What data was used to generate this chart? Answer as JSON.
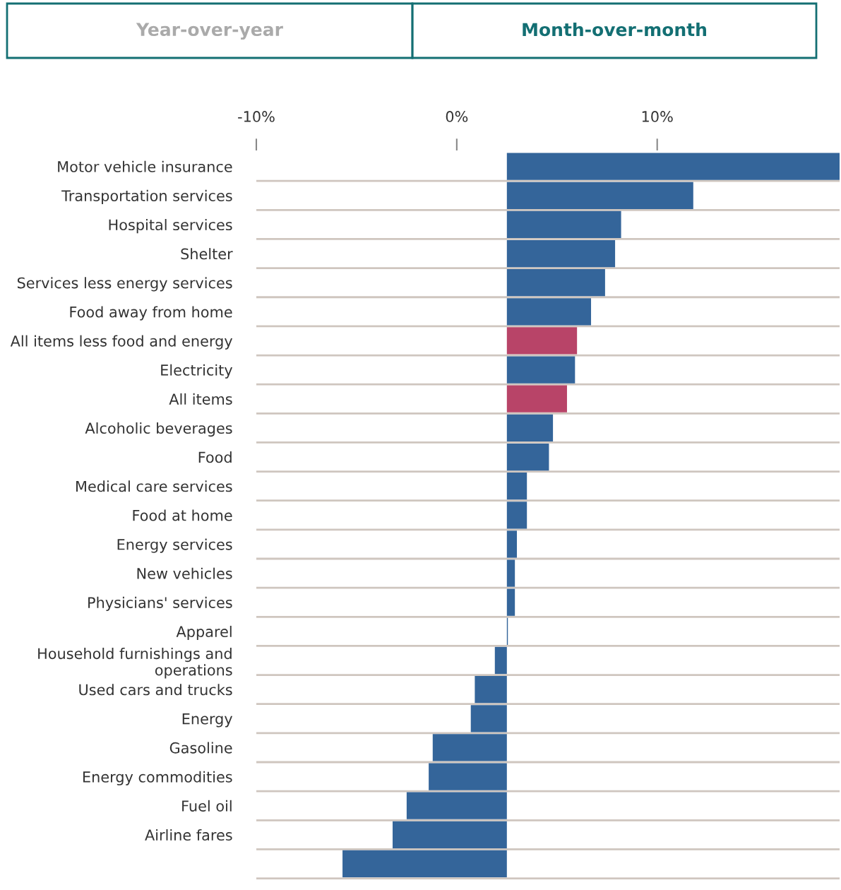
{
  "chart_data": {
    "type": "bar",
    "orientation": "horizontal",
    "annotations": [
      "Year-over-year",
      "Month-over-month"
    ],
    "categories": [
      "Motor vehicle insurance",
      "Transportation services",
      "Hospital services",
      "Shelter",
      "Services less energy services",
      "Food away from home",
      "All items less food and energy",
      "Electricity",
      "All items",
      "Alcoholic beverages",
      "Food",
      "Medical care services",
      "Food at home",
      "Energy services",
      "New vehicles",
      "Physicians' services",
      "Apparel",
      "Household furnishings and\noperations",
      "Used cars and trucks",
      "Energy",
      "Gasoline",
      "Energy commodities",
      "Fuel oil",
      "Airline fares",
      null
    ],
    "values": [
      16.6,
      9.3,
      5.7,
      5.4,
      4.9,
      4.2,
      3.5,
      3.4,
      3.0,
      2.3,
      2.1,
      1.0,
      1.0,
      0.5,
      0.4,
      0.4,
      0.05,
      -0.6,
      -1.6,
      -1.8,
      -3.7,
      -3.9,
      -5.0,
      -5.7,
      -8.2
    ],
    "base": [
      2.5,
      2.5,
      2.5,
      2.5,
      2.5,
      2.5,
      2.5,
      2.5,
      2.5,
      2.5,
      2.5,
      2.5,
      2.5,
      2.5,
      2.5,
      2.5,
      2.5,
      2.5,
      2.5,
      2.5,
      2.5,
      2.5,
      2.5,
      2.5,
      2.5
    ],
    "colors": [
      "#34659a",
      "#34659a",
      "#34659a",
      "#34659a",
      "#34659a",
      "#34659a",
      "#b84468",
      "#34659a",
      "#b84468",
      "#34659a",
      "#34659a",
      "#34659a",
      "#34659a",
      "#34659a",
      "#34659a",
      "#34659a",
      "#34659a",
      "#34659a",
      "#34659a",
      "#34659a",
      "#34659a",
      "#34659a",
      "#34659a",
      "#34659a",
      "#34659a"
    ],
    "xlim": [
      -10,
      19.1
    ],
    "xticks": [
      {
        "value": -10,
        "label": "-10%"
      },
      {
        "value": 0,
        "label": "0%"
      },
      {
        "value": 10,
        "label": "10%"
      }
    ],
    "grid": "y",
    "legend": false
  }
}
